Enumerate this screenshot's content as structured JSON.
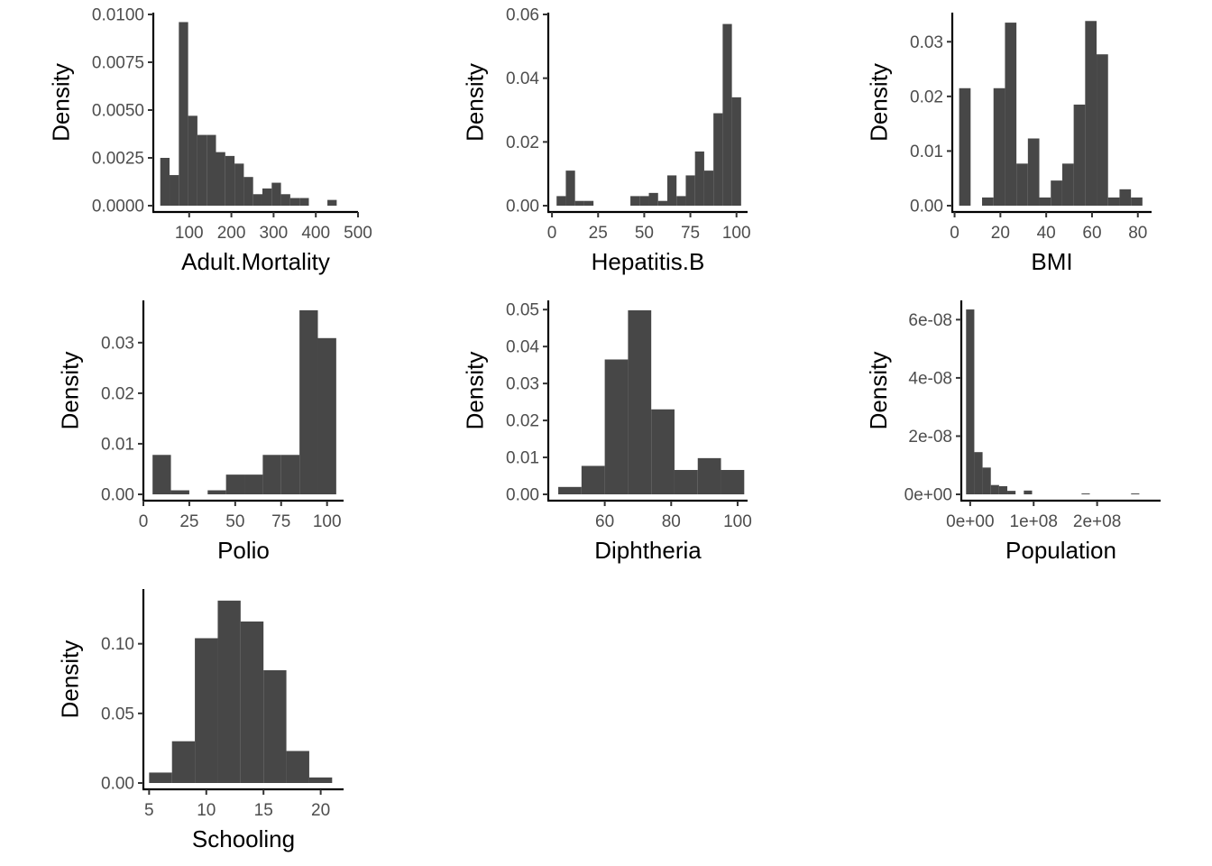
{
  "chart_data": [
    {
      "type": "bar",
      "histogram": true,
      "xlabel": "Adult.Mortality",
      "ylabel": "Density",
      "xlim": [
        15,
        500
      ],
      "ylim": [
        0,
        0.01
      ],
      "xticks": [
        100,
        200,
        300,
        400,
        500
      ],
      "xtick_labels": [
        "100",
        "200",
        "300",
        "400",
        "500"
      ],
      "yticks": [
        0,
        0.0025,
        0.005,
        0.0075,
        0.01
      ],
      "ytick_labels": [
        "0.0000",
        "0.0025",
        "0.0050",
        "0.0075",
        "0.0100"
      ],
      "bin_edges": [
        31.5,
        53.5,
        75.5,
        97.5,
        119.5,
        141.5,
        163.5,
        185.5,
        207.5,
        229.5,
        251.5,
        273.5,
        295.5,
        317.5,
        339.5,
        361.5,
        383.5,
        405.5,
        427.5,
        449.5,
        471.5,
        493.5
      ],
      "values": [
        0.0025,
        0.0016,
        0.0096,
        0.0047,
        0.0037,
        0.0037,
        0.0028,
        0.0026,
        0.0022,
        0.0015,
        0.0006,
        0.0009,
        0.0012,
        0.0006,
        0.0004,
        0.0004,
        0.0,
        0.0,
        0.0003,
        0.0,
        0.0
      ]
    },
    {
      "type": "bar",
      "histogram": true,
      "xlabel": "Hepatitis.B",
      "ylabel": "Density",
      "xlim": [
        -2,
        106
      ],
      "ylim": [
        0,
        0.06
      ],
      "xticks": [
        0,
        25,
        50,
        75,
        100
      ],
      "xtick_labels": [
        "0",
        "25",
        "50",
        "75",
        "100"
      ],
      "yticks": [
        0,
        0.02,
        0.04,
        0.06
      ],
      "ytick_labels": [
        "0.00",
        "0.02",
        "0.04",
        "0.06"
      ],
      "bin_edges": [
        2.5,
        7.5,
        12.5,
        17.5,
        22.5,
        27.5,
        32.5,
        37.5,
        42.5,
        47.5,
        52.5,
        57.5,
        62.5,
        67.5,
        72.5,
        77.5,
        82.5,
        87.5,
        92.5,
        97.5,
        102.5
      ],
      "values": [
        0.003,
        0.011,
        0.0015,
        0.0015,
        0.0,
        0.0,
        0.0,
        0.0,
        0.003,
        0.003,
        0.004,
        0.0015,
        0.0095,
        0.003,
        0.0095,
        0.017,
        0.011,
        0.029,
        0.057,
        0.034
      ]
    },
    {
      "type": "bar",
      "histogram": true,
      "xlabel": "BMI",
      "ylabel": "Density",
      "xlim": [
        -1,
        86
      ],
      "ylim": [
        0,
        0.035
      ],
      "xticks": [
        0,
        20,
        40,
        60,
        80
      ],
      "xtick_labels": [
        "0",
        "20",
        "40",
        "60",
        "80"
      ],
      "yticks": [
        0,
        0.01,
        0.02,
        0.03
      ],
      "ytick_labels": [
        "0.00",
        "0.01",
        "0.02",
        "0.03"
      ],
      "bin_edges": [
        2,
        7,
        12,
        17,
        22,
        27,
        32,
        37,
        42,
        47,
        52,
        57,
        62,
        67,
        72,
        77,
        82
      ],
      "values": [
        0.0215,
        0.0,
        0.0015,
        0.0215,
        0.0335,
        0.0077,
        0.0123,
        0.0015,
        0.0046,
        0.0077,
        0.0185,
        0.0338,
        0.0277,
        0.0015,
        0.003,
        0.0015
      ]
    },
    {
      "type": "bar",
      "histogram": true,
      "xlabel": "Polio",
      "ylabel": "Density",
      "xlim": [
        0,
        109
      ],
      "ylim": [
        0,
        0.038
      ],
      "xticks": [
        0,
        25,
        50,
        75,
        100
      ],
      "xtick_labels": [
        "0",
        "25",
        "50",
        "75",
        "100"
      ],
      "yticks": [
        0,
        0.01,
        0.02,
        0.03
      ],
      "ytick_labels": [
        "0.00",
        "0.01",
        "0.02",
        "0.03"
      ],
      "bin_edges": [
        5,
        15,
        25,
        35,
        45,
        55,
        65,
        75,
        85,
        95,
        105
      ],
      "values": [
        0.0078,
        0.0008,
        0.0,
        0.0008,
        0.0039,
        0.0039,
        0.0078,
        0.0078,
        0.0364,
        0.0309
      ]
    },
    {
      "type": "bar",
      "histogram": true,
      "xlabel": "Diphtheria",
      "ylabel": "Density",
      "xlim": [
        43,
        103
      ],
      "ylim": [
        0,
        0.052
      ],
      "xticks": [
        60,
        80,
        100
      ],
      "xtick_labels": [
        "60",
        "80",
        "100"
      ],
      "yticks": [
        0,
        0.01,
        0.02,
        0.03,
        0.04,
        0.05
      ],
      "ytick_labels": [
        "0.00",
        "0.01",
        "0.02",
        "0.03",
        "0.04",
        "0.05"
      ],
      "bin_edges": [
        46,
        53,
        60,
        67,
        74,
        81,
        88,
        95,
        102
      ],
      "values": [
        0.002,
        0.0077,
        0.0365,
        0.0498,
        0.023,
        0.0066,
        0.0098,
        0.0066
      ]
    },
    {
      "type": "bar",
      "histogram": true,
      "xlabel": "Population",
      "ylabel": "Density",
      "xlim": [
        -14000000,
        300000000
      ],
      "ylim": [
        0,
        6.6e-08
      ],
      "xticks": [
        0,
        100000000,
        200000000
      ],
      "xtick_labels": [
        "0e+00",
        "1e+08",
        "2e+08"
      ],
      "yticks": [
        0,
        2e-08,
        4e-08,
        6e-08
      ],
      "ytick_labels": [
        "0e+00",
        "2e-08",
        "4e-08",
        "6e-08"
      ],
      "bin_edges": [
        -6500000,
        6500000,
        19500000,
        32500000,
        45500000,
        58500000,
        71500000,
        84500000,
        97500000,
        110500000,
        123500000,
        136500000,
        149500000,
        162500000,
        175500000,
        188500000,
        201500000,
        214500000,
        227500000,
        240500000,
        253500000,
        266500000,
        279500000
      ],
      "values": [
        6.35e-08,
        1.45e-08,
        9.2e-09,
        3.2e-09,
        2.8e-09,
        1.2e-09,
        0.0,
        1.3e-09,
        0.0,
        0.0,
        0.0,
        0.0,
        0.0,
        0.0,
        3e-10,
        0.0,
        0.0,
        0.0,
        0.0,
        0.0,
        3e-10,
        0.0
      ]
    },
    {
      "type": "bar",
      "histogram": true,
      "xlabel": "Schooling",
      "ylabel": "Density",
      "xlim": [
        4.5,
        22
      ],
      "ylim": [
        0,
        0.138
      ],
      "xticks": [
        5,
        10,
        15,
        20
      ],
      "xtick_labels": [
        "5",
        "10",
        "15",
        "20"
      ],
      "yticks": [
        0,
        0.05,
        0.1
      ],
      "ytick_labels": [
        "0.00",
        "0.05",
        "0.10"
      ],
      "bin_edges": [
        5,
        7,
        9,
        11,
        13,
        15,
        17,
        19,
        21
      ],
      "values": [
        0.0075,
        0.03,
        0.104,
        0.131,
        0.116,
        0.081,
        0.023,
        0.004
      ]
    }
  ]
}
